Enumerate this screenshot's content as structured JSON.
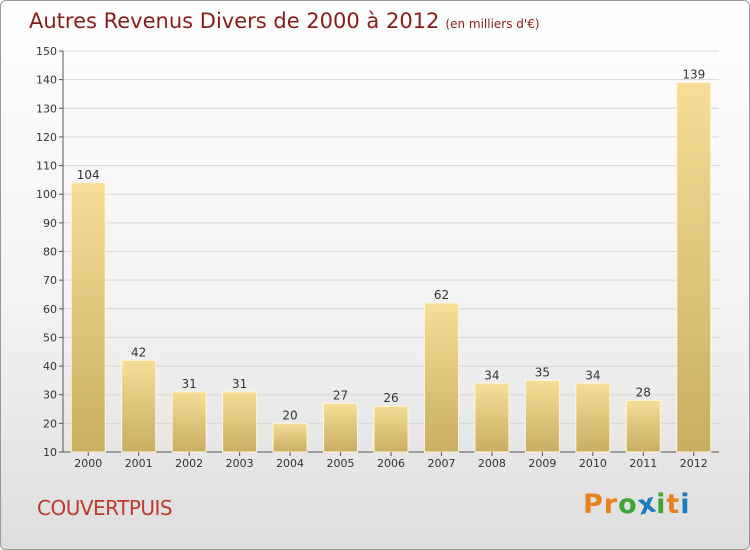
{
  "title": "Autres Revenus Divers de 2000 à 2012",
  "subtitle": "(en milliers d'€)",
  "city": "COUVERTPUIS",
  "logo": {
    "letters": [
      "P",
      "r",
      "o",
      "x",
      "i",
      "t",
      "i"
    ],
    "colors": [
      "#e8821e",
      "#e8821e",
      "#3fa535",
      "#1c7cc0",
      "#3fa535",
      "#e8821e",
      "#1c7cc0"
    ]
  },
  "chart_data": {
    "type": "bar",
    "categories": [
      "2000",
      "2001",
      "2002",
      "2003",
      "2004",
      "2005",
      "2006",
      "2007",
      "2008",
      "2009",
      "2010",
      "2011",
      "2012"
    ],
    "values": [
      104,
      42,
      31,
      31,
      20,
      27,
      26,
      62,
      34,
      35,
      34,
      28,
      139
    ],
    "ylim": [
      10,
      150
    ],
    "yticks": [
      10,
      20,
      30,
      40,
      50,
      60,
      70,
      80,
      90,
      100,
      110,
      120,
      130,
      140,
      150
    ],
    "grid": true,
    "bar_color": "#e8cf83",
    "title": "Autres Revenus Divers de 2000 à 2012",
    "xlabel": "",
    "ylabel": ""
  }
}
